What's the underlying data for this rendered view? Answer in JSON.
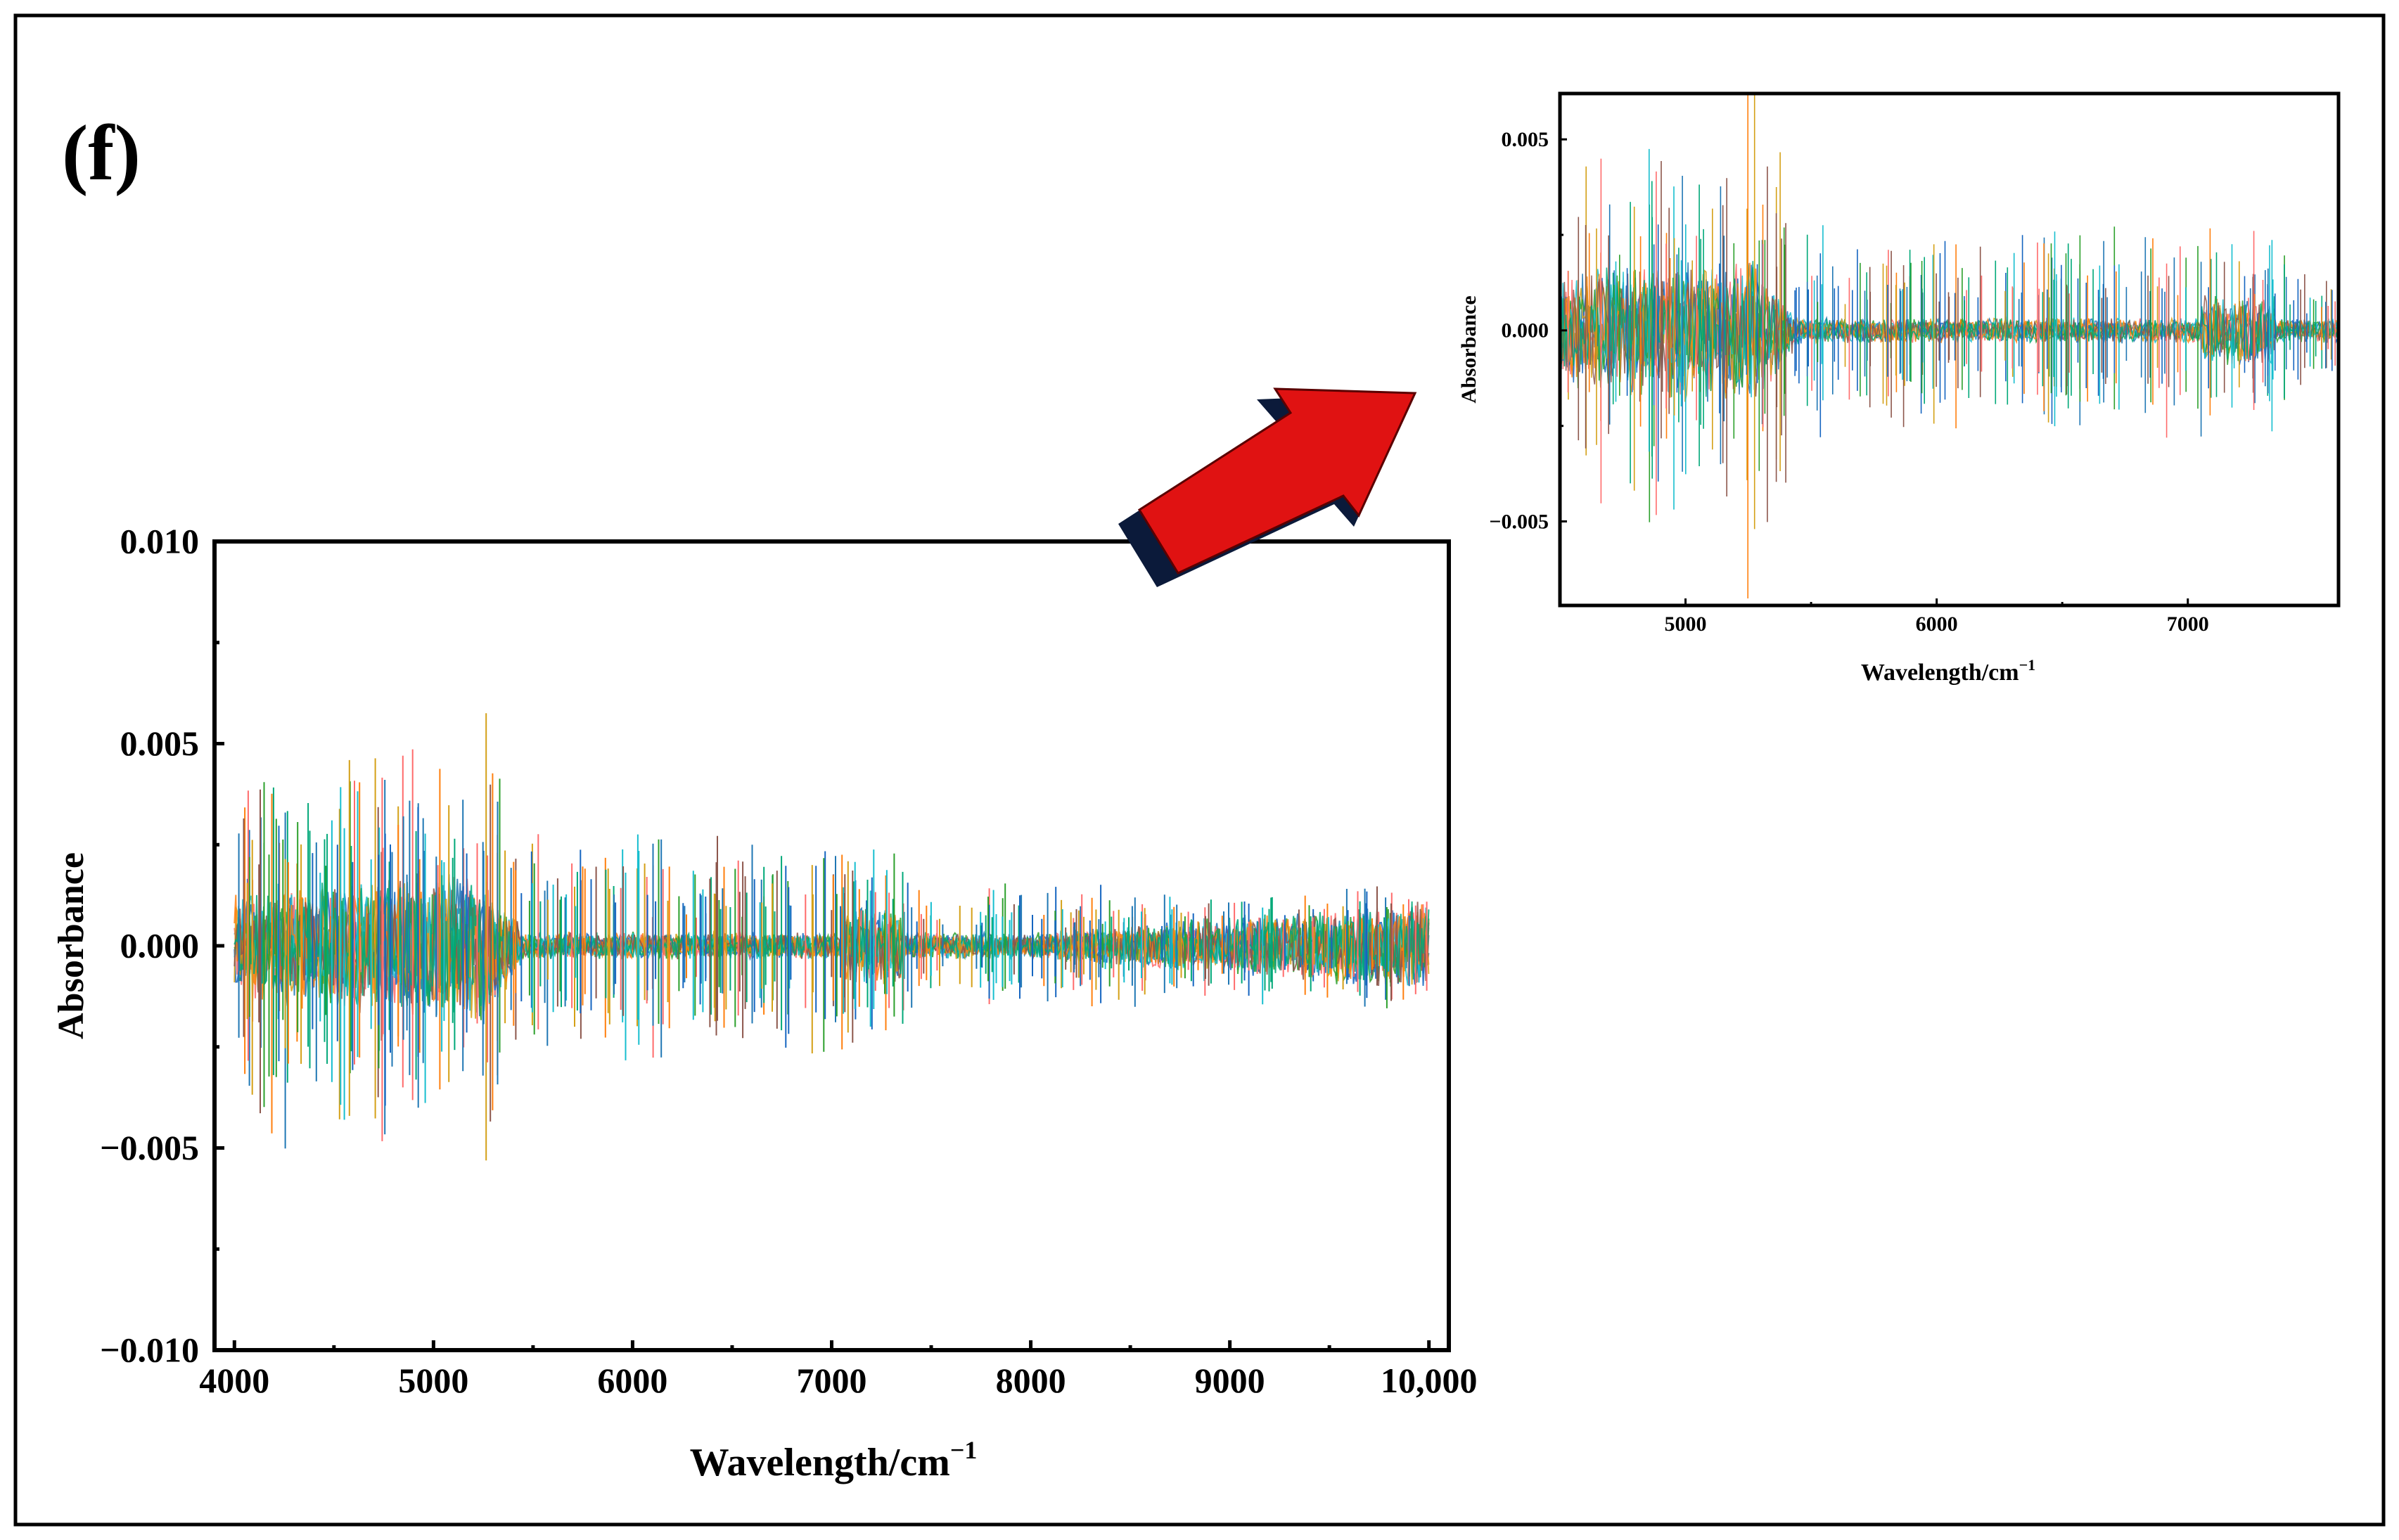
{
  "panel_label": "(f)",
  "colors": {
    "series": [
      "#1f77b4",
      "#ff6b6b",
      "#1565c0",
      "#d4a017",
      "#2ca02c",
      "#17becf",
      "#ff7f0e",
      "#8c564b",
      "#00a878"
    ],
    "arrow_fill": "#e01212",
    "arrow_shadow": "#0b1a3a"
  },
  "chart_data": [
    {
      "type": "line",
      "title": "",
      "xlabel": "Wavelength/cm",
      "xlabel_superscript": "−1",
      "ylabel": "Absorbance",
      "xlim": [
        3900,
        10100
      ],
      "ylim": [
        -0.01,
        0.01
      ],
      "xticks": [
        4000,
        5000,
        6000,
        7000,
        8000,
        9000,
        10000
      ],
      "xtick_labels": [
        "4000",
        "5000",
        "6000",
        "7000",
        "8000",
        "9000",
        "10,000"
      ],
      "yticks": [
        -0.01,
        -0.005,
        0.0,
        0.005,
        0.01
      ],
      "ytick_labels": [
        "−0.010",
        "−0.005",
        "0.000",
        "0.005",
        "0.010"
      ],
      "x_range": [
        4000,
        10000
      ],
      "grid": false,
      "legend": "none"
    },
    {
      "type": "line",
      "title": "",
      "xlabel": "Wavelength/cm",
      "xlabel_superscript": "−1",
      "ylabel": "Absorbance",
      "xlim": [
        4500,
        7600
      ],
      "ylim": [
        -0.0072,
        0.0062
      ],
      "xticks": [
        5000,
        6000,
        7000
      ],
      "xtick_labels": [
        "5000",
        "6000",
        "7000"
      ],
      "yticks": [
        -0.005,
        0.0,
        0.005
      ],
      "ytick_labels": [
        "−0.005",
        "0.000",
        "0.005"
      ],
      "x_range": [
        4500,
        7600
      ],
      "grid": false,
      "legend": "none"
    }
  ]
}
